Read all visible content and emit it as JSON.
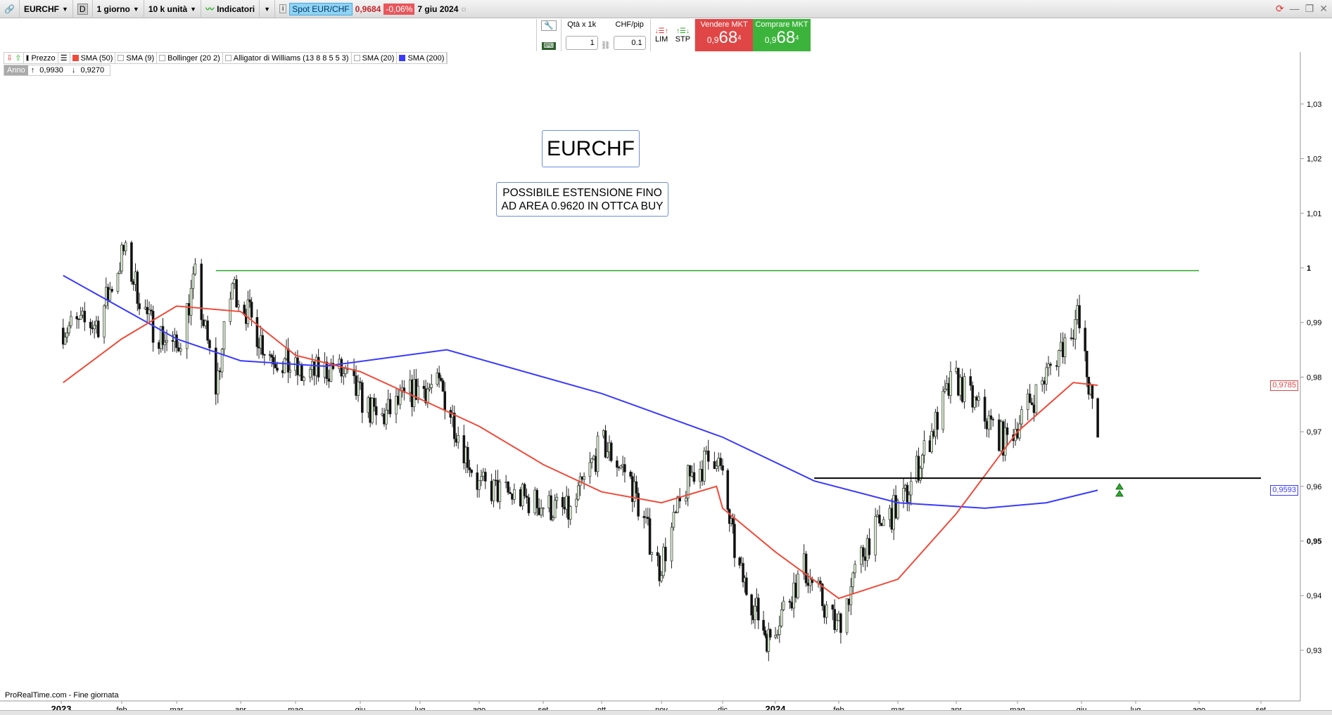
{
  "toolbar": {
    "symbol": "EURCHF",
    "period_badge": "D",
    "timeframe": "1 giorno",
    "units": "10 k unità",
    "indicators": "Indicatori",
    "spot_label": "Spot EUR/CHF",
    "last_price": "0,9684",
    "change": "-0,06%",
    "date": "7 giu 2024"
  },
  "order": {
    "qty_label": "Qtà x 1k",
    "qty_value": "1",
    "pip_label": "CHF/pip",
    "pip_value": "0.1",
    "lim": "LIM",
    "stp": "STP",
    "sell_label": "Vendere MKT",
    "sell_prefix": "0,9",
    "sell_big": "68",
    "sell_sup": "4",
    "buy_label": "Comprare MKT",
    "buy_prefix": "0,9",
    "buy_big": "68",
    "buy_sup": "4",
    "sell_color": "#e04646",
    "buy_color": "#3cb43c"
  },
  "legend": {
    "items": [
      {
        "label": "Prezzo",
        "color": "#000000"
      },
      {
        "label": "SMA (50)",
        "color": "#f04a3a"
      },
      {
        "label": "SMA (9)",
        "color": ""
      },
      {
        "label": "Bollinger (20 2)",
        "color": ""
      },
      {
        "label": "Alligator di Williams (13 8 8 5 5 3)",
        "color": ""
      },
      {
        "label": "SMA (20)",
        "color": ""
      },
      {
        "label": "SMA (200)",
        "color": "#3a3aff"
      }
    ]
  },
  "range": {
    "label": "Anno",
    "high": "0,9930",
    "low": "0,9270"
  },
  "annotations": {
    "title": "EURCHF",
    "note_line1": "POSSIBILE ESTENSIONE FINO",
    "note_line2": "AD AREA 0.9620 IN OTTCA BUY"
  },
  "footer": "ProRealTime.com - Fine giornata",
  "chart_data": {
    "type": "candlestick",
    "y_ticks": [
      "1,03",
      "1,02",
      "1,01",
      "1",
      "0,99",
      "0,98",
      "0,97",
      "0,96",
      "0,95",
      "0,94",
      "0,93"
    ],
    "y_tick_values": [
      1.03,
      1.02,
      1.01,
      1,
      0.99,
      0.98,
      0.97,
      0.96,
      0.95,
      0.94,
      0.93
    ],
    "x_ticks": [
      "2023",
      "feb",
      "mar",
      "apr",
      "mag",
      "giu",
      "lug",
      "ago",
      "set",
      "ott",
      "nov",
      "dic",
      "2024",
      "feb",
      "mar",
      "apr",
      "mag",
      "giu",
      "lug",
      "ago",
      "set"
    ],
    "sma50_last": "0,9785",
    "sma200_last": "0,9593",
    "price_path": [
      [
        "2023-01-02",
        0.989
      ],
      [
        "2023-01-20",
        0.99
      ],
      [
        "2023-02-02",
        1.003
      ],
      [
        "2023-02-15",
        0.99
      ],
      [
        "2023-03-01",
        0.985
      ],
      [
        "2023-03-10",
        0.998
      ],
      [
        "2023-03-20",
        0.978
      ],
      [
        "2023-03-28",
        0.997
      ],
      [
        "2023-04-15",
        0.985
      ],
      [
        "2023-05-05",
        0.98
      ],
      [
        "2023-05-20",
        0.982
      ],
      [
        "2023-06-10",
        0.972
      ],
      [
        "2023-06-30",
        0.978
      ],
      [
        "2023-07-12",
        0.978
      ],
      [
        "2023-08-01",
        0.96
      ],
      [
        "2023-08-20",
        0.958
      ],
      [
        "2023-09-15",
        0.955
      ],
      [
        "2023-10-01",
        0.968
      ],
      [
        "2023-10-15",
        0.962
      ],
      [
        "2023-10-31",
        0.945
      ],
      [
        "2023-11-15",
        0.962
      ],
      [
        "2023-11-28",
        0.966
      ],
      [
        "2023-12-10",
        0.945
      ],
      [
        "2023-12-28",
        0.932
      ],
      [
        "2024-01-15",
        0.945
      ],
      [
        "2024-01-31",
        0.934
      ],
      [
        "2024-02-15",
        0.95
      ],
      [
        "2024-03-05",
        0.958
      ],
      [
        "2024-03-31",
        0.98
      ],
      [
        "2024-04-10",
        0.975
      ],
      [
        "2024-04-25",
        0.968
      ],
      [
        "2024-05-10",
        0.977
      ],
      [
        "2024-05-30",
        0.991
      ],
      [
        "2024-06-10",
        0.968
      ]
    ],
    "sma50": [
      [
        "2023-01-02",
        0.979
      ],
      [
        "2023-02-01",
        0.987
      ],
      [
        "2023-03-01",
        0.993
      ],
      [
        "2023-04-01",
        0.992
      ],
      [
        "2023-05-01",
        0.984
      ],
      [
        "2023-06-01",
        0.981
      ],
      [
        "2023-07-01",
        0.976
      ],
      [
        "2023-08-01",
        0.971
      ],
      [
        "2023-09-01",
        0.964
      ],
      [
        "2023-10-01",
        0.959
      ],
      [
        "2023-11-01",
        0.957
      ],
      [
        "2023-11-28",
        0.96
      ],
      [
        "2023-12-01",
        0.956
      ],
      [
        "2024-01-01",
        0.948
      ],
      [
        "2024-02-01",
        0.9395
      ],
      [
        "2024-03-01",
        0.943
      ],
      [
        "2024-04-01",
        0.955
      ],
      [
        "2024-05-01",
        0.97
      ],
      [
        "2024-05-28",
        0.979
      ],
      [
        "2024-06-10",
        0.9785
      ]
    ],
    "sma200": [
      [
        "2023-01-02",
        0.9986
      ],
      [
        "2023-03-01",
        0.987
      ],
      [
        "2023-04-01",
        0.983
      ],
      [
        "2023-05-15",
        0.982
      ],
      [
        "2023-07-15",
        0.985
      ],
      [
        "2023-10-01",
        0.977
      ],
      [
        "2023-12-01",
        0.969
      ],
      [
        "2024-01-20",
        0.961
      ],
      [
        "2024-03-01",
        0.957
      ],
      [
        "2024-04-15",
        0.956
      ],
      [
        "2024-05-15",
        0.957
      ],
      [
        "2024-06-10",
        0.9593
      ]
    ],
    "resistance_line": {
      "value": 0.9995,
      "from": "2023-03-20",
      "to": "2024-08-01",
      "color": "#2aa82a"
    },
    "support_line": {
      "value": 0.9615,
      "from": "2024-01-20",
      "to": "2024-09-01",
      "color": "#000000"
    }
  }
}
